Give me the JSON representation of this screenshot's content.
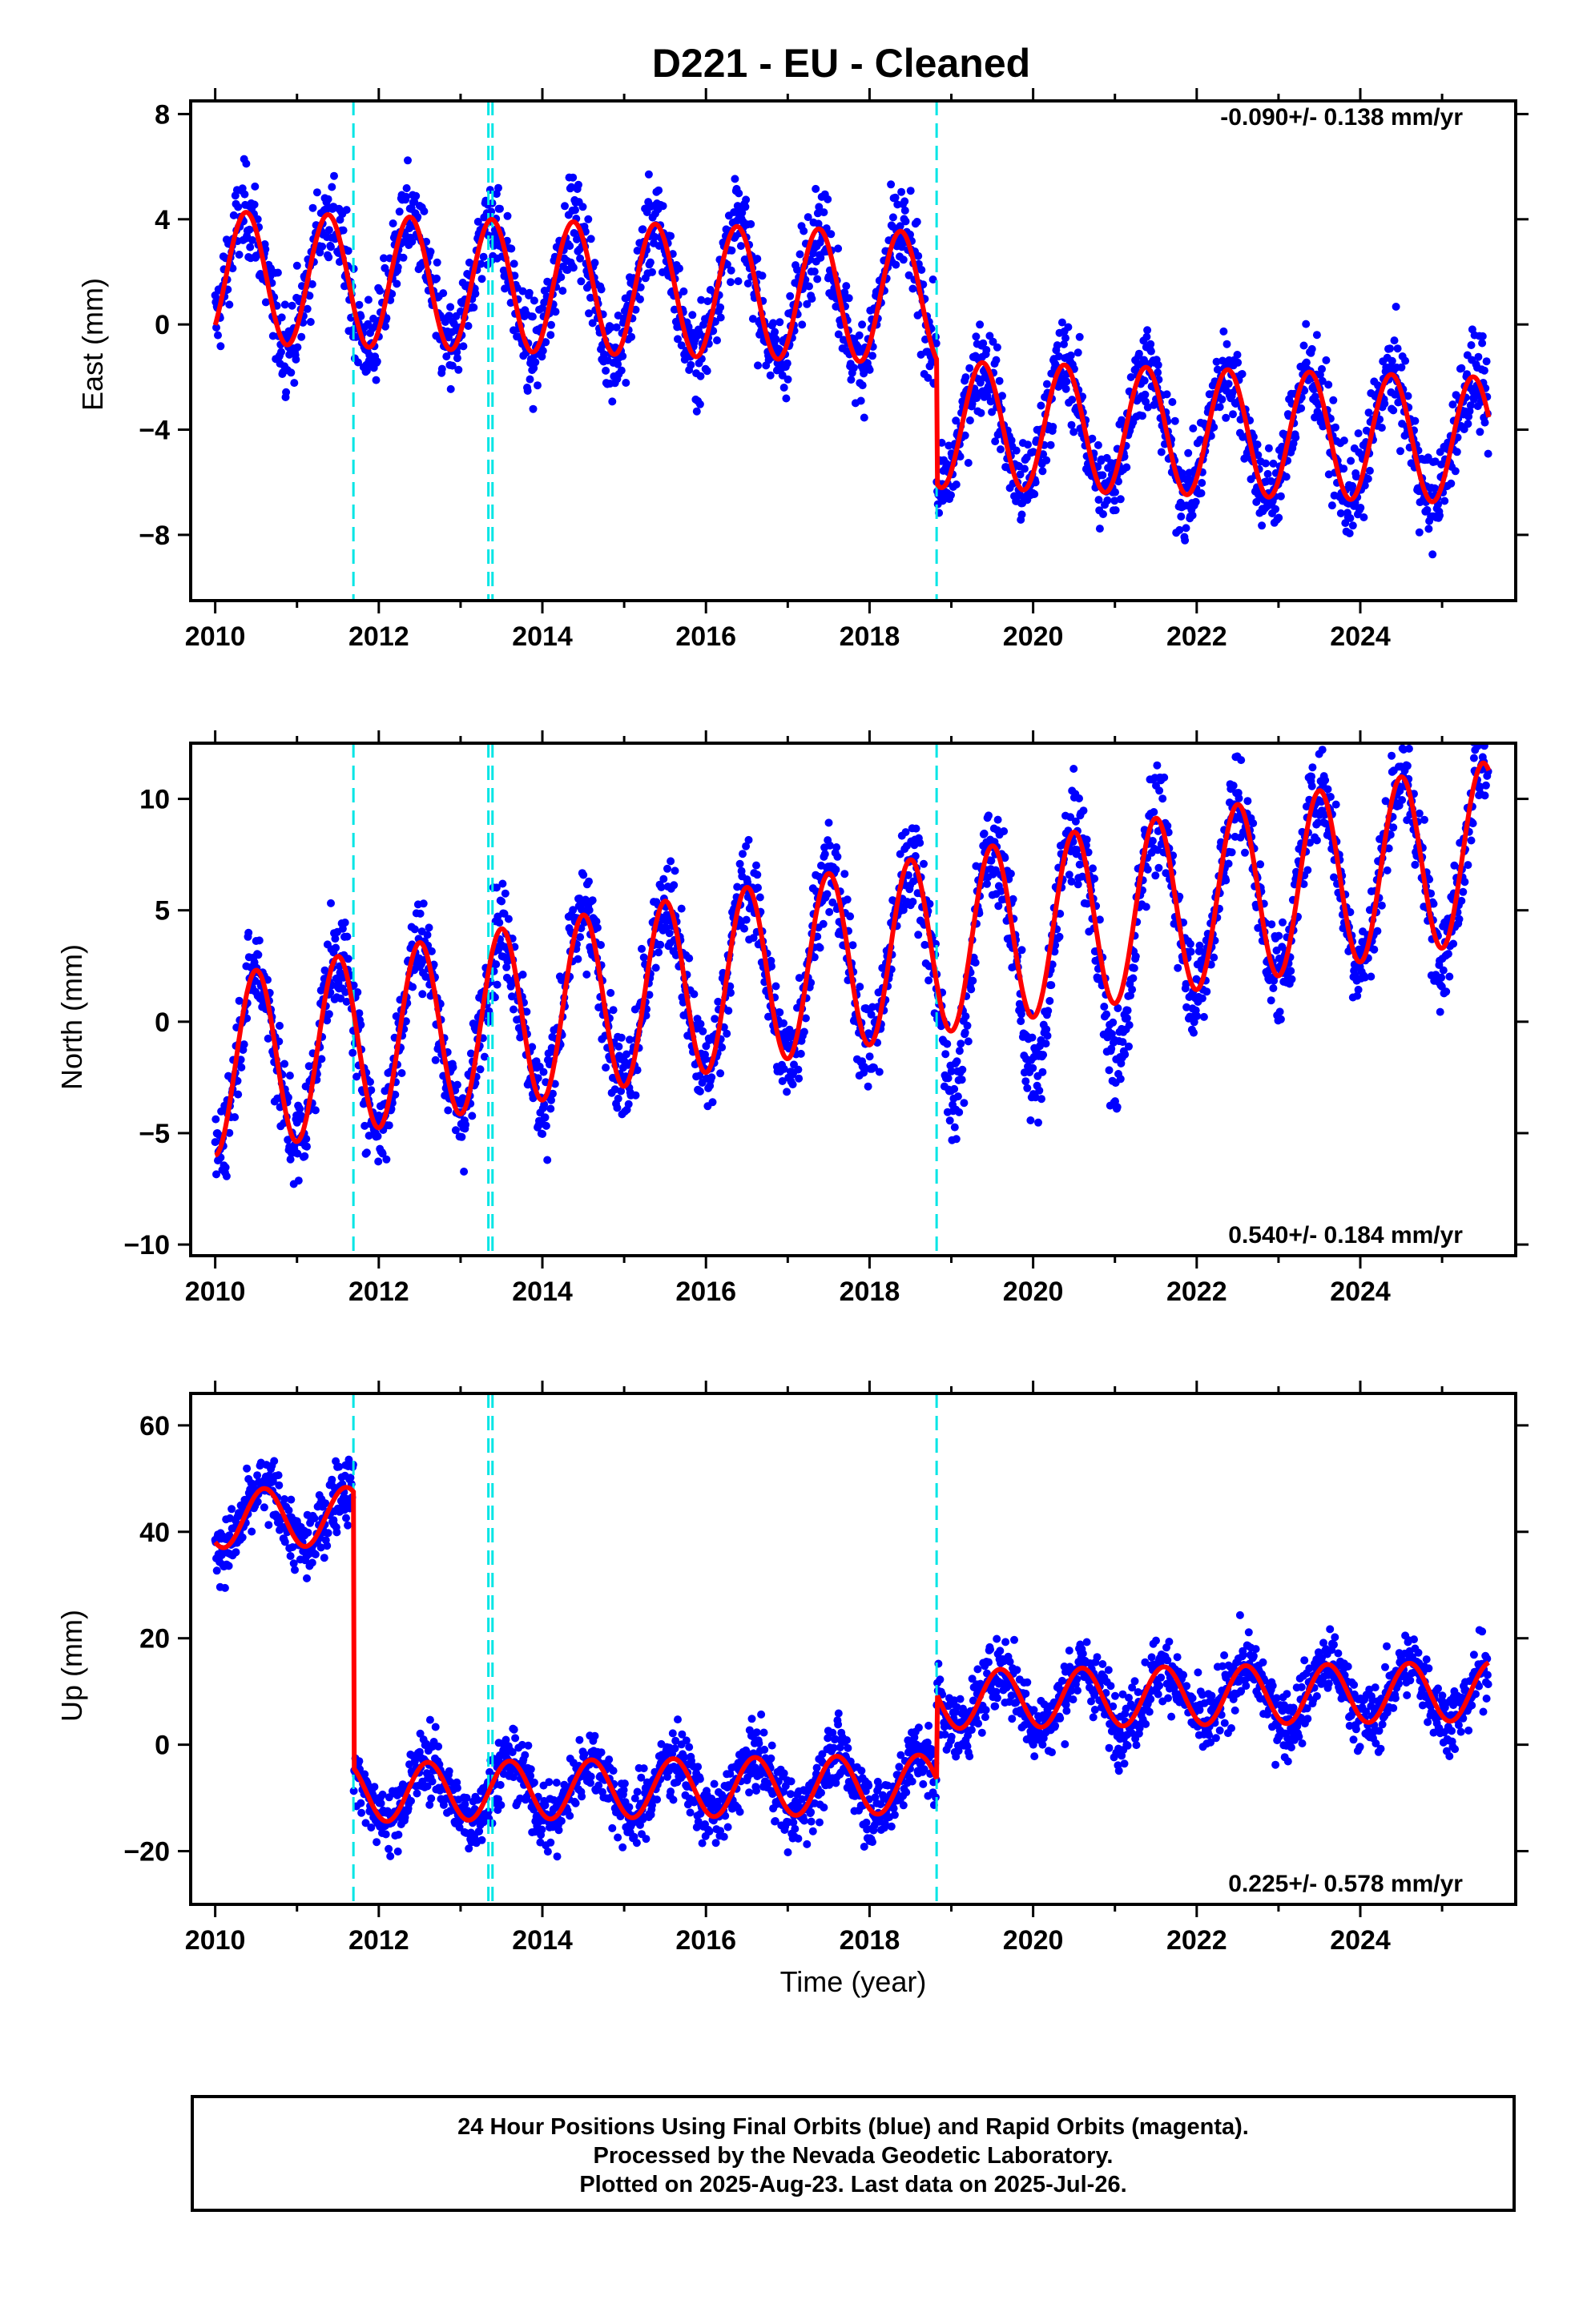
{
  "title": "D221  - EU - Cleaned",
  "xlabel": "Time (year)",
  "footer": {
    "line1": "24 Hour Positions Using Final Orbits (blue) and Rapid Orbits (magenta).",
    "line2": "Processed by the Nevada Geodetic Laboratory.",
    "line3": "Plotted on 2025-Aug-23. Last data on 2025-Jul-26."
  },
  "colors": {
    "points": "#0000ff",
    "model": "#ff0000",
    "steps": "#00e5e5",
    "frame": "#000000"
  },
  "chart_data": [
    {
      "type": "scatter",
      "component": "east",
      "ylabel": "East (mm)",
      "rate_text": "-0.090+/- 0.138 mm/yr",
      "rate_position": "top-right",
      "xlim": [
        2009.7,
        2025.9
      ],
      "ylim": [
        -10.5,
        8.5
      ],
      "xticks": [
        2010,
        2012,
        2014,
        2016,
        2018,
        2020,
        2022,
        2024
      ],
      "yticks": [
        -8,
        -4,
        0,
        4,
        8
      ],
      "step_lines": [
        2011.69,
        2013.34,
        2013.39,
        2018.82
      ],
      "model": {
        "segments": [
          {
            "x_start": 2010.0,
            "x_end": 2018.82,
            "level": 1.8,
            "amplitude": 2.5,
            "anchor_x": 2010.0,
            "anchor_y": 0.0,
            "anchor_weight": 0.6
          },
          {
            "x_start": 2018.82,
            "x_end": 2025.57,
            "level": -3.8,
            "amplitude": 2.4
          }
        ],
        "peak_phase": 0.38,
        "trend_mm_per_yr": -0.09,
        "end_value": -4.2
      },
      "points_summary": {
        "count_per_year": 150,
        "scatter_mm": 1.2
      }
    },
    {
      "type": "scatter",
      "component": "north",
      "ylabel": "North (mm)",
      "rate_text": "0.540+/- 0.184 mm/yr",
      "rate_position": "bottom-right",
      "xlim": [
        2009.7,
        2025.9
      ],
      "ylim": [
        -10.5,
        12.5
      ],
      "xticks": [
        2010,
        2012,
        2014,
        2016,
        2018,
        2020,
        2022,
        2024
      ],
      "yticks": [
        -10,
        -5,
        0,
        5,
        10
      ],
      "step_lines": [
        2011.69,
        2013.34,
        2013.39,
        2018.82
      ],
      "model": {
        "segments": [
          {
            "x_start": 2010.0,
            "x_end": 2025.57,
            "level": -2.0,
            "amplitude": 4.0
          }
        ],
        "peak_phase": 0.5,
        "trend_mm_per_yr": 0.54,
        "start_value": -7.0,
        "end_value": 8.2
      },
      "points_summary": {
        "count_per_year": 150,
        "scatter_mm": 1.5
      }
    },
    {
      "type": "scatter",
      "component": "up",
      "ylabel": "Up (mm)",
      "rate_text": "0.225+/- 0.578 mm/yr",
      "rate_position": "bottom-right",
      "xlim": [
        2009.7,
        2025.9
      ],
      "ylim": [
        -30,
        66
      ],
      "xticks": [
        2010,
        2012,
        2014,
        2016,
        2018,
        2020,
        2022,
        2024
      ],
      "yticks": [
        -20,
        0,
        20,
        40,
        60
      ],
      "step_lines": [
        2011.69,
        2013.34,
        2013.39,
        2018.82
      ],
      "model": {
        "segments": [
          {
            "x_start": 2010.0,
            "x_end": 2011.69,
            "level": 42.5,
            "amplitude": 5.5
          },
          {
            "x_start": 2011.69,
            "x_end": 2018.82,
            "level": -9.0,
            "amplitude": 5.5
          },
          {
            "x_start": 2018.82,
            "x_end": 2025.57,
            "level": 8.5,
            "amplitude": 5.5
          }
        ],
        "peak_phase": 0.6,
        "trend_mm_per_yr": 0.225,
        "step_values": [
          {
            "x": 2011.69,
            "from": 48.0,
            "to": 2.0
          },
          {
            "x": 2018.82,
            "from": -9.5,
            "to": 7.0
          }
        ]
      },
      "points_summary": {
        "count_per_year": 150,
        "scatter_mm": 4.5
      }
    }
  ]
}
